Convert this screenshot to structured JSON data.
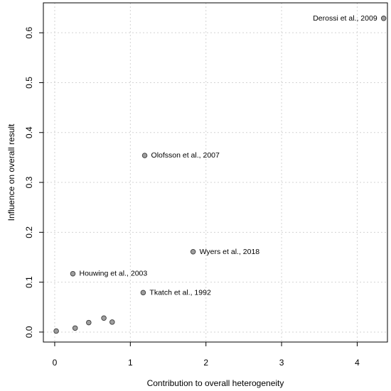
{
  "chart_data": {
    "type": "scatter",
    "xlabel": "Contribution to overall heterogeneity",
    "ylabel": "Influence on overall result",
    "xlim": [
      -0.15,
      4.4
    ],
    "ylim": [
      -0.02,
      0.66
    ],
    "x_ticks": [
      0,
      1,
      2,
      3,
      4
    ],
    "x_tick_labels": [
      "0",
      "1",
      "2",
      "3",
      "4"
    ],
    "y_ticks": [
      0.0,
      0.1,
      0.2,
      0.3,
      0.4,
      0.5,
      0.6
    ],
    "y_tick_labels": [
      "0.0",
      "0.1",
      "0.2",
      "0.3",
      "0.4",
      "0.5",
      "0.6"
    ],
    "grid": true,
    "point_color": "#9e9e9e",
    "grid_color": "#d3d3d3",
    "points": [
      {
        "x": 4.35,
        "y": 0.629,
        "label": "Derossi et al., 2009"
      },
      {
        "x": 1.19,
        "y": 0.354,
        "label": "Olofsson et al., 2007"
      },
      {
        "x": 1.83,
        "y": 0.161,
        "label": "Wyers et al., 2018"
      },
      {
        "x": 0.24,
        "y": 0.117,
        "label": "Houwing et al., 2003"
      },
      {
        "x": 1.17,
        "y": 0.079,
        "label": "Tkatch et al., 1992"
      },
      {
        "x": 0.02,
        "y": 0.002,
        "label": ""
      },
      {
        "x": 0.27,
        "y": 0.008,
        "label": ""
      },
      {
        "x": 0.45,
        "y": 0.019,
        "label": ""
      },
      {
        "x": 0.65,
        "y": 0.028,
        "label": ""
      },
      {
        "x": 0.76,
        "y": 0.02,
        "label": ""
      }
    ]
  }
}
